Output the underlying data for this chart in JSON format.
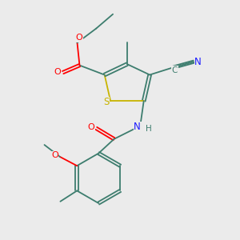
{
  "background_color": "#ebebeb",
  "bond_color": "#3d7d6e",
  "sulfur_color": "#c8b400",
  "oxygen_color": "#ff0000",
  "nitrogen_color": "#1a1aff",
  "carbon_color": "#3d7d6e",
  "figsize": [
    3.0,
    3.0
  ],
  "dpi": 100,
  "xlim": [
    0,
    10
  ],
  "ylim": [
    0,
    10
  ]
}
